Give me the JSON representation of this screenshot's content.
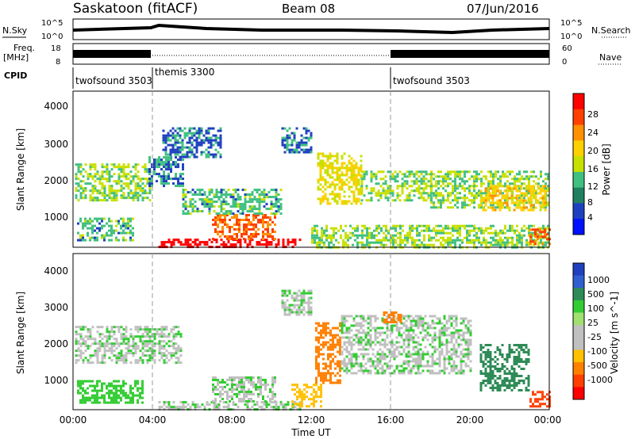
{
  "header": {
    "station": "Saskatoon (fitACF)",
    "beam": "Beam 08",
    "date": "07/Jun/2016"
  },
  "top_panels": {
    "nsky_label": "N.Sky",
    "nsky_ticks": [
      "10^5",
      "10^0"
    ],
    "nsky_right_ticks": [
      "10^5",
      "10^0"
    ],
    "nsearch_label": "N.Search",
    "freq_label_1": "Freq.",
    "freq_label_2": "[MHz]",
    "freq_ticks": [
      "18",
      "8"
    ],
    "nave_ticks": [
      "60",
      "0"
    ],
    "nave_label": "Nave",
    "cpid_label": "CPID"
  },
  "cpid_segments": [
    {
      "label": "twofsound 3503",
      "start_h": 0,
      "end_h": 4
    },
    {
      "label": "themis 3300",
      "start_h": 4,
      "end_h": 16
    },
    {
      "label": "twofsound 3503",
      "start_h": 16,
      "end_h": 24
    }
  ],
  "x_ticks": [
    "00:00",
    "04:00",
    "08:00",
    "12:00",
    "16:00",
    "20:00",
    "00:00"
  ],
  "x_label": "Time UT",
  "power_panel": {
    "ylabel": "Slant Range [km]",
    "yticks": [
      "4000",
      "3000",
      "2000",
      "1000"
    ],
    "cbar_label": "Power [dB]",
    "cbar_ticks": [
      "28",
      "24",
      "20",
      "16",
      "12",
      "8",
      "4"
    ],
    "cbar_colors": [
      "#ff0000",
      "#ff4000",
      "#ff9000",
      "#ffd000",
      "#c8e000",
      "#40c080",
      "#208060",
      "#1e40c0",
      "#0010ff"
    ]
  },
  "velocity_panel": {
    "ylabel": "Slant Range [km]",
    "yticks": [
      "4000",
      "3000",
      "2000",
      "1000"
    ],
    "cbar_label": "Velocity [m s^-1]",
    "cbar_ticks": [
      "1000",
      "500",
      "100",
      "25",
      "-25",
      "-100",
      "-500",
      "-1000"
    ],
    "cbar_colors": [
      "#2040c0",
      "#3060d0",
      "#2e8b57",
      "#32cd32",
      "#a0e070",
      "#c0c0c0",
      "#c0c0c0",
      "#ffc000",
      "#ff8000",
      "#ff4000",
      "#ff0000"
    ]
  },
  "chart_data": {
    "type": "heatmap",
    "x_range_hours": [
      0,
      24
    ],
    "y_range_km": [
      180,
      4500
    ],
    "power_regions": [
      {
        "t0": 0.1,
        "t1": 3.9,
        "r0": 1500,
        "r1": 2500,
        "db": 10
      },
      {
        "t0": 0.2,
        "t1": 3.0,
        "r0": 400,
        "r1": 1000,
        "db": 8
      },
      {
        "t0": 3.8,
        "t1": 5.6,
        "r0": 1900,
        "r1": 2700,
        "db": 6
      },
      {
        "t0": 4.3,
        "t1": 11.5,
        "r0": 180,
        "r1": 420,
        "db": 30
      },
      {
        "t0": 7.0,
        "t1": 10.2,
        "r0": 400,
        "r1": 1100,
        "db": 22
      },
      {
        "t0": 5.5,
        "t1": 10.5,
        "r0": 1100,
        "r1": 1800,
        "db": 8
      },
      {
        "t0": 4.5,
        "t1": 7.5,
        "r0": 2700,
        "r1": 3500,
        "db": 5
      },
      {
        "t0": 10.5,
        "t1": 12.0,
        "r0": 2800,
        "r1": 3500,
        "db": 5
      },
      {
        "t0": 12.3,
        "t1": 14.5,
        "r0": 1400,
        "r1": 2800,
        "db": 14
      },
      {
        "t0": 14.5,
        "t1": 18.0,
        "r0": 1500,
        "r1": 2300,
        "db": 10
      },
      {
        "t0": 18.0,
        "t1": 24.0,
        "r0": 1300,
        "r1": 2300,
        "db": 10
      },
      {
        "t0": 20.5,
        "t1": 23.8,
        "r0": 1200,
        "r1": 1900,
        "db": 16
      },
      {
        "t0": 12.0,
        "t1": 24.0,
        "r0": 180,
        "r1": 800,
        "db": 10
      },
      {
        "t0": 23.0,
        "t1": 24.0,
        "r0": 300,
        "r1": 700,
        "db": 22
      }
    ],
    "velocity_regions": [
      {
        "t0": 0.1,
        "t1": 5.5,
        "r0": 1500,
        "r1": 2500,
        "v": 0
      },
      {
        "t0": 0.2,
        "t1": 3.5,
        "r0": 400,
        "r1": 1000,
        "v": 60
      },
      {
        "t0": 4.3,
        "t1": 11.5,
        "r0": 180,
        "r1": 420,
        "v": 0
      },
      {
        "t0": 7.0,
        "t1": 10.2,
        "r0": 400,
        "r1": 1100,
        "v": 0
      },
      {
        "t0": 10.5,
        "t1": 12.0,
        "r0": 2800,
        "r1": 3500,
        "v": 0
      },
      {
        "t0": 12.2,
        "t1": 13.5,
        "r0": 900,
        "r1": 2600,
        "v": -300
      },
      {
        "t0": 11.0,
        "t1": 12.5,
        "r0": 300,
        "r1": 900,
        "v": -80
      },
      {
        "t0": 13.5,
        "t1": 20.0,
        "r0": 1200,
        "r1": 2800,
        "v": 0
      },
      {
        "t0": 20.5,
        "t1": 23.0,
        "r0": 700,
        "r1": 2000,
        "v": 300
      },
      {
        "t0": 23.0,
        "t1": 24.0,
        "r0": 300,
        "r1": 700,
        "v": -600
      },
      {
        "t0": 15.5,
        "t1": 16.5,
        "r0": 2600,
        "r1": 2900,
        "v": -300
      }
    ]
  }
}
